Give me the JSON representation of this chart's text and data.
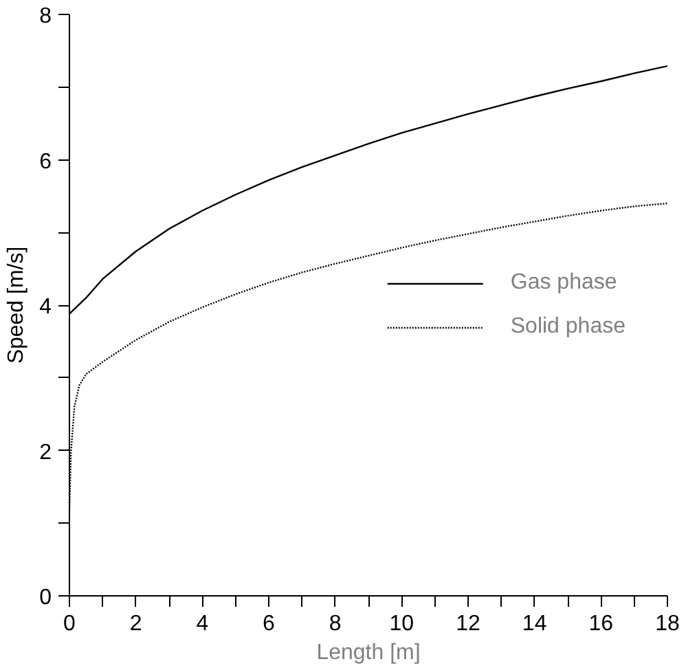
{
  "chart_data": {
    "type": "line",
    "xlabel": "Length [m]",
    "ylabel": "Speed [m/s]",
    "xlim": [
      0,
      18
    ],
    "ylim": [
      0,
      8
    ],
    "xticks": [
      0,
      {
        "value": 1,
        "label": null
      },
      2,
      {
        "value": 3,
        "label": null
      },
      4,
      {
        "value": 5,
        "label": null
      },
      6,
      {
        "value": 7,
        "label": null
      },
      8,
      {
        "value": 9,
        "label": null
      },
      10,
      {
        "value": 11,
        "label": null
      },
      12,
      {
        "value": 13,
        "label": null
      },
      14,
      {
        "value": 15,
        "label": null
      },
      16,
      {
        "value": 17,
        "label": null
      },
      18
    ],
    "yticks": [
      0,
      {
        "value": 1,
        "label": null
      },
      2,
      {
        "value": 3,
        "label": null
      },
      4,
      {
        "value": 5,
        "label": null
      },
      6,
      {
        "value": 7,
        "label": null
      },
      8
    ],
    "grid": false,
    "legend": "right",
    "marker": "none",
    "series": [
      {
        "name": "Gas phase",
        "color": "#000000",
        "line_style": "solid",
        "x": [
          0,
          0.5,
          1,
          2,
          3,
          4,
          5,
          6,
          7,
          8,
          9,
          10,
          11,
          12,
          13,
          14,
          15,
          16,
          17,
          18
        ],
        "values": [
          3.88,
          4.1,
          4.36,
          4.74,
          5.05,
          5.3,
          5.52,
          5.72,
          5.9,
          6.06,
          6.22,
          6.37,
          6.5,
          6.63,
          6.75,
          6.87,
          6.98,
          7.08,
          7.19,
          7.29
        ]
      },
      {
        "name": "Solid phase",
        "color": "#000000",
        "line_style": "dotted",
        "x": [
          0,
          0.05,
          0.15,
          0.3,
          0.5,
          1,
          2,
          3,
          4,
          5,
          6,
          7,
          8,
          9,
          10,
          11,
          12,
          13,
          14,
          15,
          16,
          17,
          18
        ],
        "values": [
          1.2,
          2.0,
          2.6,
          2.9,
          3.05,
          3.22,
          3.52,
          3.77,
          3.97,
          4.15,
          4.31,
          4.45,
          4.57,
          4.68,
          4.79,
          4.89,
          4.98,
          5.07,
          5.15,
          5.23,
          5.3,
          5.36,
          5.4
        ]
      }
    ]
  }
}
